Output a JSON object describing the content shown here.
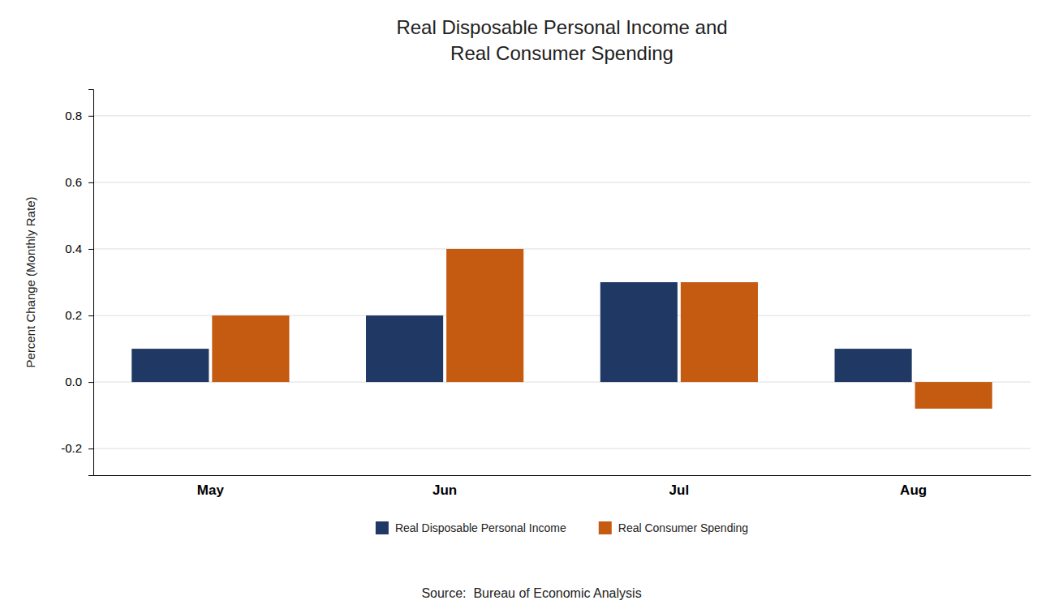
{
  "chart_data": {
    "type": "bar",
    "title": "Real Disposable Personal Income and\nReal Consumer Spending",
    "y_label": "Percent Change (Monthly Rate)",
    "categories": [
      "May",
      "Jun",
      "Jul",
      "Aug"
    ],
    "series": [
      {
        "name": "Real Disposable Personal Income",
        "color": "#1F3864",
        "values": [
          0.1,
          0.2,
          0.3,
          0.1
        ]
      },
      {
        "name": "Real Consumer Spending",
        "color": "#C55A11",
        "values": [
          0.2,
          0.4,
          0.3,
          -0.08
        ]
      }
    ],
    "ylim": [
      -0.28,
      0.88
    ],
    "yticks": [
      -0.2,
      {
        "value": 0.0,
        "label": "0.0"
      },
      0.2,
      0.4,
      0.6,
      0.8
    ],
    "grid": true,
    "legend": "bottom",
    "annotations": [
      "Source:  Bureau of Economic Analysis"
    ]
  }
}
